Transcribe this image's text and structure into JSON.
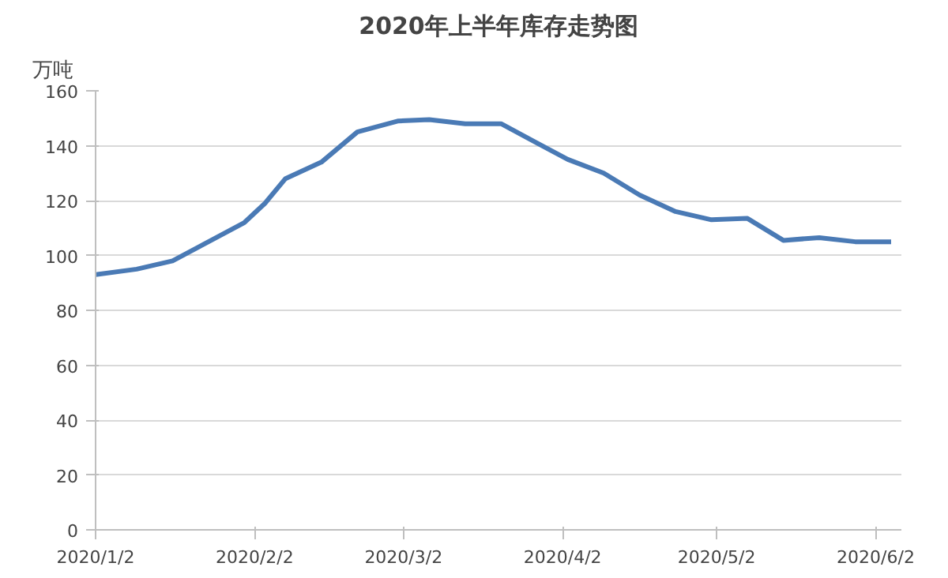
{
  "chart_data": {
    "type": "line",
    "title": "2020年上半年库存走势图",
    "ylabel": "万吨",
    "x": [
      "2020-01-02",
      "2020-01-10",
      "2020-01-17",
      "2020-01-24",
      "2020-01-31",
      "2020-02-04",
      "2020-02-08",
      "2020-02-15",
      "2020-02-22",
      "2020-03-01",
      "2020-03-07",
      "2020-03-14",
      "2020-03-21",
      "2020-03-28",
      "2020-04-03",
      "2020-04-10",
      "2020-04-17",
      "2020-04-24",
      "2020-05-01",
      "2020-05-08",
      "2020-05-15",
      "2020-05-22",
      "2020-05-29",
      "2020-06-05"
    ],
    "series": [
      {
        "color": "#4a7ab5",
        "values": [
          93,
          95,
          98,
          105,
          112,
          119,
          128,
          134,
          145,
          149,
          149.5,
          148,
          148,
          141,
          135,
          130,
          122,
          116,
          113,
          113.5,
          105.5,
          106.5,
          105,
          105
        ]
      }
    ],
    "xlim": [
      "2020-01-02",
      "2020-06-07"
    ],
    "xticks": [
      {
        "value": "2020-01-02",
        "label": "2020/1/2"
      },
      {
        "value": "2020-02-02",
        "label": "2020/2/2"
      },
      {
        "value": "2020-03-02",
        "label": "2020/3/2"
      },
      {
        "value": "2020-04-02",
        "label": "2020/4/2"
      },
      {
        "value": "2020-05-02",
        "label": "2020/5/2"
      },
      {
        "value": "2020-06-02",
        "label": "2020/6/2"
      }
    ],
    "ylim": [
      0,
      160
    ],
    "yticks": [
      0,
      20,
      40,
      60,
      80,
      100,
      120,
      140,
      160
    ],
    "grid": "y",
    "marker": "none",
    "line_style": "solid"
  }
}
